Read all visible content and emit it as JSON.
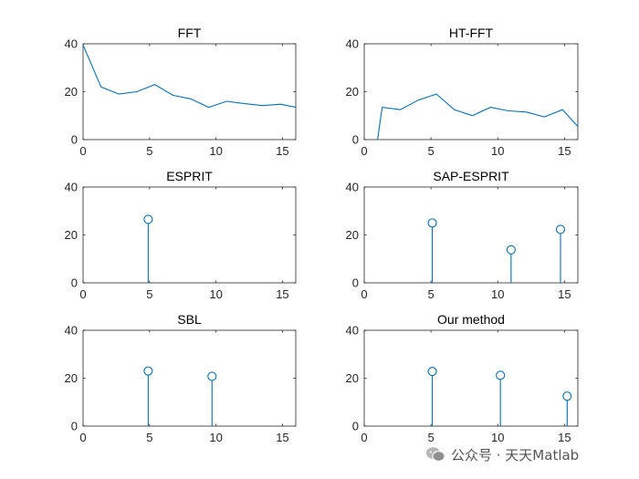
{
  "watermark": {
    "text": "公众号 · 天天Matlab"
  },
  "colors": {
    "series": "#0072BD",
    "axis": "#262626"
  },
  "chart_data": [
    {
      "type": "line",
      "title": "FFT",
      "xlim": [
        0,
        16
      ],
      "ylim": [
        0,
        40
      ],
      "xticks": [
        0,
        5,
        10,
        15
      ],
      "yticks": [
        0,
        20,
        40
      ],
      "x": [
        0,
        1.35,
        2.7,
        4.05,
        5.4,
        6.75,
        8.1,
        9.45,
        10.8,
        12.15,
        13.5,
        14.85,
        16
      ],
      "values": [
        39.5,
        22,
        19,
        20,
        23,
        18.5,
        17,
        13.5,
        16,
        15,
        14.2,
        14.8,
        13.5
      ]
    },
    {
      "type": "line",
      "title": "HT-FFT",
      "xlim": [
        0,
        16
      ],
      "ylim": [
        0,
        40
      ],
      "xticks": [
        0,
        5,
        10,
        15
      ],
      "yticks": [
        0,
        20,
        40
      ],
      "x": [
        1.0,
        1.35,
        2.7,
        4.05,
        5.4,
        6.75,
        8.1,
        9.45,
        10.8,
        12.15,
        13.5,
        14.85,
        16
      ],
      "values": [
        0,
        13.5,
        12.5,
        16.5,
        19,
        12.5,
        10,
        13.5,
        12,
        11.5,
        9.5,
        12.5,
        5.5
      ]
    },
    {
      "type": "scatter",
      "title": "ESPRIT",
      "xlim": [
        0,
        16
      ],
      "ylim": [
        0,
        40
      ],
      "xticks": [
        0,
        5,
        10,
        15
      ],
      "yticks": [
        0,
        20,
        40
      ],
      "x": [
        4.9
      ],
      "values": [
        26.5
      ]
    },
    {
      "type": "scatter",
      "title": "SAP-ESPRIT",
      "xlim": [
        0,
        16
      ],
      "ylim": [
        0,
        40
      ],
      "xticks": [
        0,
        5,
        10,
        15
      ],
      "yticks": [
        0,
        20,
        40
      ],
      "x": [
        5.1,
        11.0,
        14.7
      ],
      "values": [
        25,
        13.8,
        22.3
      ]
    },
    {
      "type": "scatter",
      "title": "SBL",
      "xlim": [
        0,
        16
      ],
      "ylim": [
        0,
        40
      ],
      "xticks": [
        0,
        5,
        10,
        15
      ],
      "yticks": [
        0,
        20,
        40
      ],
      "x": [
        4.9,
        9.7
      ],
      "values": [
        23,
        20.8
      ]
    },
    {
      "type": "scatter",
      "title": "Our method",
      "xlim": [
        0,
        16
      ],
      "ylim": [
        0,
        40
      ],
      "xticks": [
        0,
        5,
        10,
        15
      ],
      "yticks": [
        0,
        20,
        40
      ],
      "x": [
        5.1,
        10.2,
        15.2
      ],
      "values": [
        22.8,
        21.2,
        12.5
      ]
    }
  ]
}
